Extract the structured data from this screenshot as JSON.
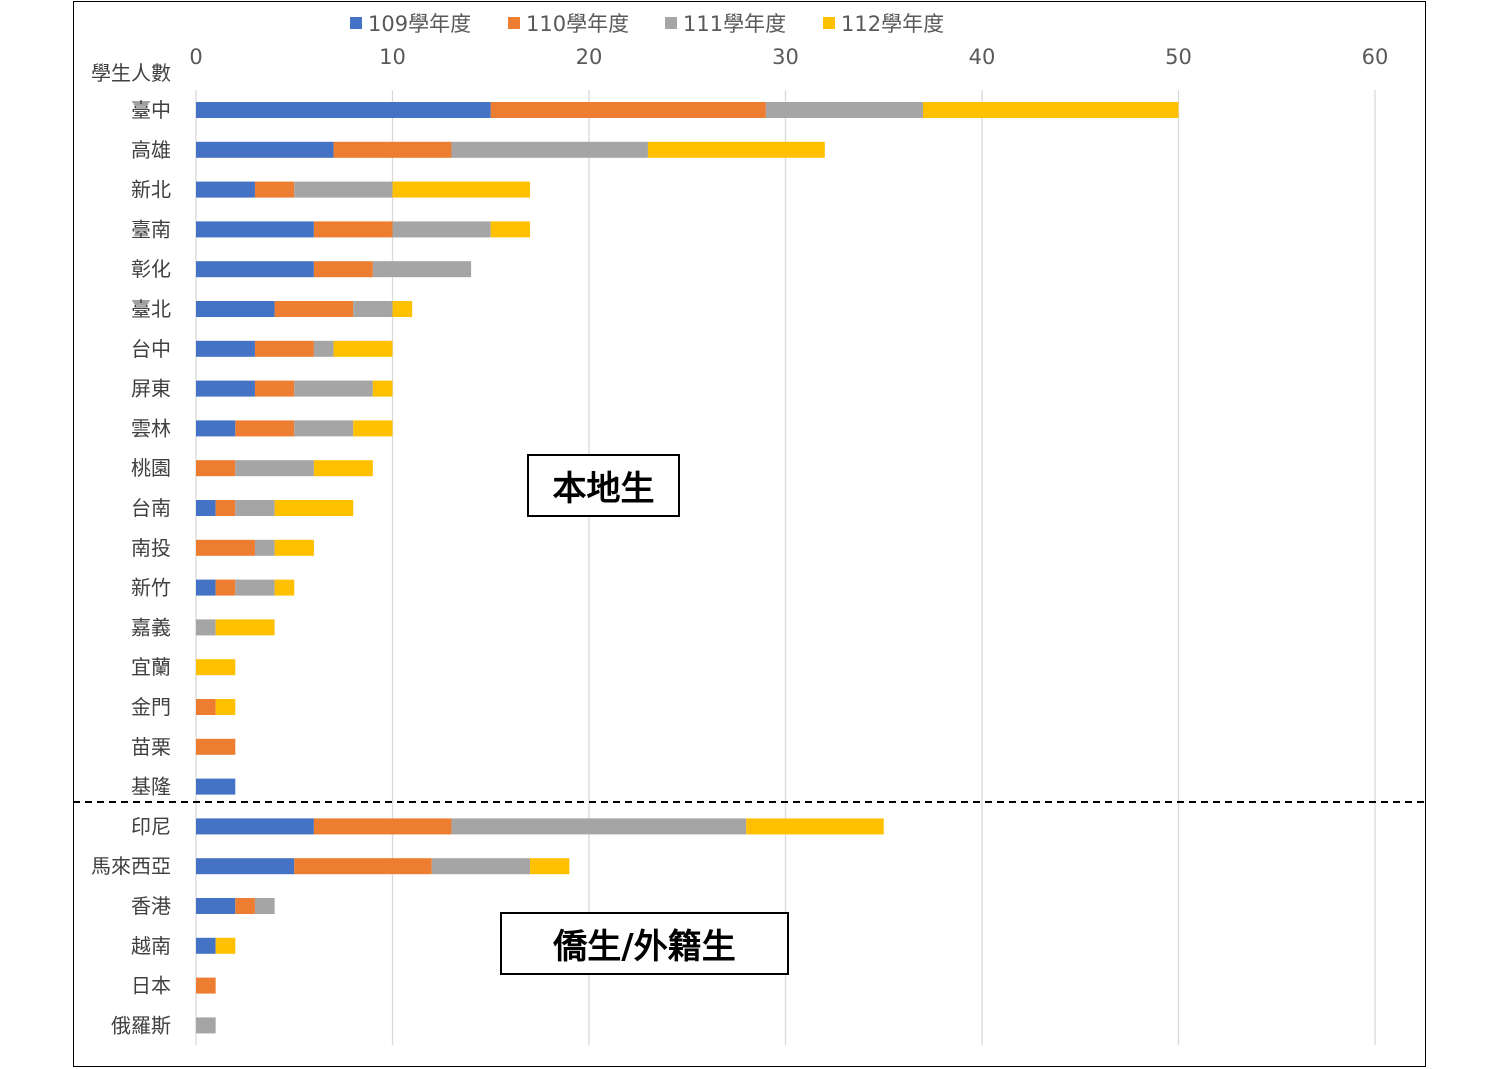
{
  "chart_data": {
    "type": "bar",
    "orientation": "horizontal",
    "stacked": true,
    "ylabel": "學生人數",
    "xlim": [
      0,
      60
    ],
    "xticks": [
      0,
      10,
      20,
      30,
      40,
      50,
      60
    ],
    "grid": true,
    "legend_position": "top",
    "categories": [
      "臺中",
      "高雄",
      "新北",
      "臺南",
      "彰化",
      "臺北",
      "台中",
      "屏東",
      "雲林",
      "桃園",
      "台南",
      "南投",
      "新竹",
      "嘉義",
      "宜蘭",
      "金門",
      "苗栗",
      "基隆",
      "印尼",
      "馬來西亞",
      "香港",
      "越南",
      "日本",
      "俄羅斯"
    ],
    "series": [
      {
        "name": "109學年度",
        "color": "#4472C4",
        "values": [
          15,
          7,
          3,
          6,
          6,
          4,
          3,
          3,
          2,
          0,
          1,
          0,
          1,
          0,
          0,
          0,
          0,
          2,
          6,
          5,
          2,
          1,
          0,
          0
        ]
      },
      {
        "name": "110學年度",
        "color": "#ED7D31",
        "values": [
          14,
          6,
          2,
          4,
          3,
          4,
          3,
          2,
          3,
          2,
          1,
          3,
          1,
          0,
          0,
          1,
          2,
          0,
          7,
          7,
          1,
          0,
          1,
          0
        ]
      },
      {
        "name": "111學年度",
        "color": "#A5A5A5",
        "values": [
          8,
          10,
          5,
          5,
          5,
          2,
          1,
          4,
          3,
          4,
          2,
          1,
          2,
          1,
          0,
          0,
          0,
          0,
          15,
          5,
          1,
          0,
          0,
          1
        ]
      },
      {
        "name": "112學年度",
        "color": "#FFC000",
        "values": [
          13,
          9,
          7,
          2,
          0,
          1,
          3,
          1,
          2,
          3,
          4,
          2,
          1,
          3,
          2,
          1,
          0,
          0,
          7,
          2,
          0,
          1,
          0,
          0
        ]
      }
    ],
    "annotations": {
      "local": "本地生",
      "overseas": "僑生/外籍生"
    }
  }
}
